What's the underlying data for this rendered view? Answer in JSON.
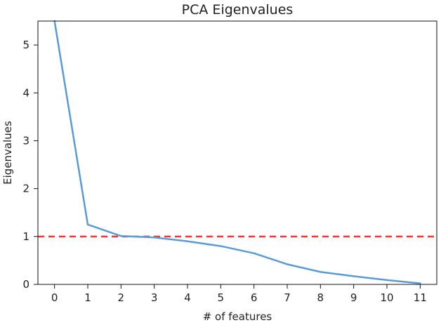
{
  "chart_data": {
    "type": "line",
    "title": "PCA Eigenvalues",
    "xlabel": "# of features",
    "ylabel": "Eigenvalues",
    "x": [
      0,
      1,
      2,
      3,
      4,
      5,
      6,
      7,
      8,
      9,
      10,
      11
    ],
    "series": [
      {
        "values": [
          5.5,
          1.25,
          1.01,
          0.98,
          0.9,
          0.8,
          0.65,
          0.42,
          0.26,
          0.17,
          0.09,
          0.02
        ],
        "color": "#5b9bd5"
      }
    ],
    "reference_line": {
      "y": 1.0,
      "color": "#ee3333",
      "style": "dashed"
    },
    "xlim": [
      -0.5,
      11.5
    ],
    "ylim": [
      0,
      5.5
    ],
    "xticks": [
      "0",
      "1",
      "2",
      "3",
      "4",
      "5",
      "6",
      "7",
      "8",
      "9",
      "10",
      "11"
    ],
    "yticks": [
      "0",
      "1",
      "2",
      "3",
      "4",
      "5"
    ],
    "grid": false,
    "legend": "none"
  }
}
